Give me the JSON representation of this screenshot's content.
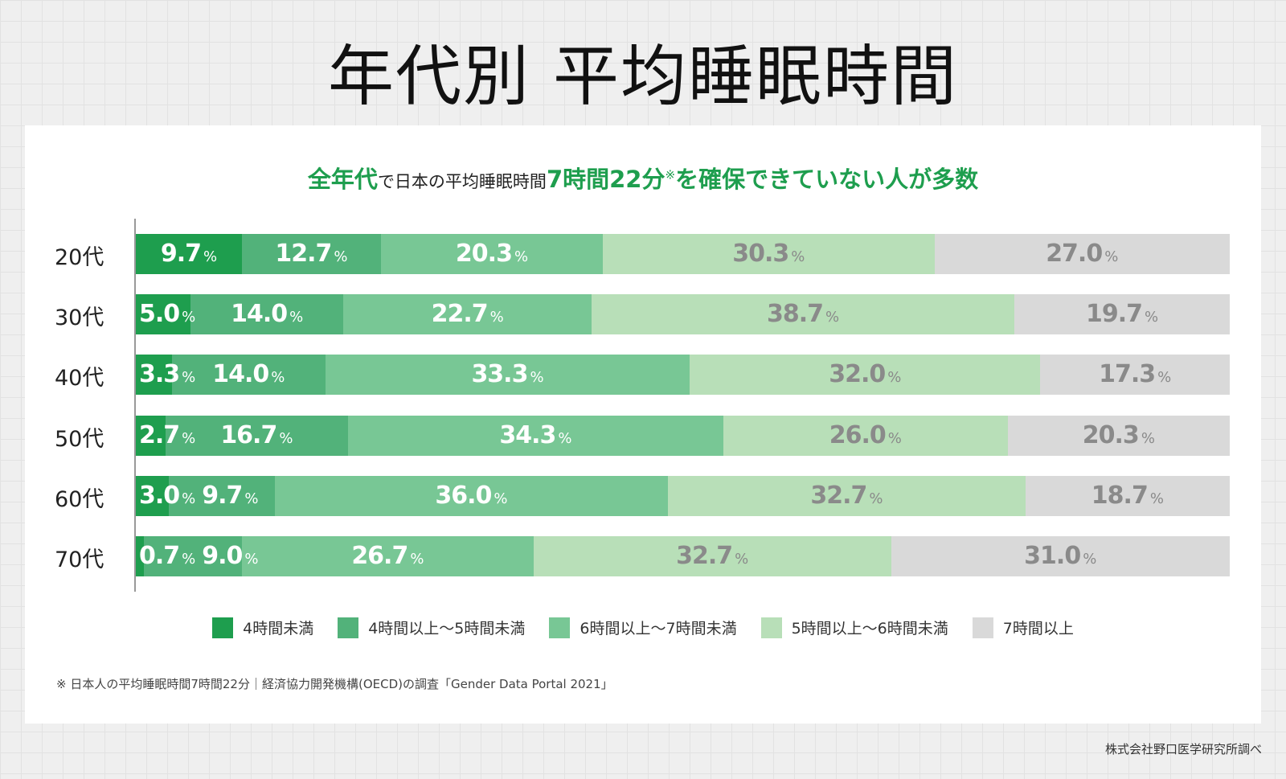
{
  "title": "年代別 平均睡眠時間",
  "subtitle": {
    "p1": "全年代",
    "p2": "で日本の平均睡眠時間",
    "p3": "7時間22分",
    "p4": "※",
    "p5": "を確保できていない人が多数"
  },
  "chart_data": {
    "type": "bar",
    "orientation": "horizontal",
    "stacked": true,
    "categories": [
      "20代",
      "30代",
      "40代",
      "50代",
      "60代",
      "70代"
    ],
    "unit": "%",
    "series": [
      {
        "name": "4時間未満",
        "color": "#1e9e4e",
        "label_color": "#ffffff",
        "values": [
          9.7,
          5.0,
          3.3,
          2.7,
          3.0,
          0.7
        ]
      },
      {
        "name": "4時間以上〜5時間未満",
        "color": "#52b27a",
        "label_color": "#ffffff",
        "values": [
          12.7,
          14.0,
          14.0,
          16.7,
          9.7,
          9.0
        ]
      },
      {
        "name": "6時間以上〜7時間未満",
        "color": "#78c795",
        "label_color": "#ffffff",
        "values": [
          20.3,
          22.7,
          33.3,
          34.3,
          36.0,
          26.7
        ]
      },
      {
        "name": "5時間以上〜6時間未満",
        "color": "#b8dfb8",
        "label_color": "#8a8a8a",
        "values": [
          30.3,
          38.7,
          32.0,
          26.0,
          32.7,
          32.7
        ]
      },
      {
        "name": "7時間以上",
        "color": "#d9d9d9",
        "label_color": "#8a8a8a",
        "values": [
          27.0,
          19.7,
          17.3,
          20.3,
          18.7,
          31.0
        ]
      }
    ],
    "legend_position": "bottom",
    "grid": false
  },
  "footnote": "※ 日本人の平均睡眠時間7時間22分｜経済協力開発機構(OECD)の調査「Gender Data Portal 2021」",
  "credit": "株式会社野口医学研究所調べ"
}
